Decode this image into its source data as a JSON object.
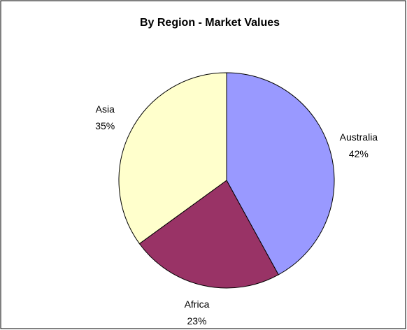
{
  "chart_data": {
    "type": "pie",
    "title": "By Region - Market Values",
    "categories": [
      "Australia",
      "Africa",
      "Asia"
    ],
    "values": [
      42,
      23,
      35
    ],
    "value_labels": [
      "42%",
      "23%",
      "35%"
    ],
    "colors": [
      "#9999ff",
      "#993366",
      "#ffffcc"
    ]
  }
}
